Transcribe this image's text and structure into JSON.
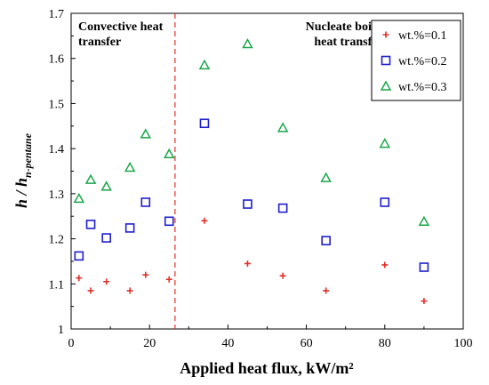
{
  "chart_data": {
    "type": "scatter",
    "xlabel": "Applied heat flux, kW/m²",
    "ylabel_main": "h / h",
    "ylabel_sub": "n-pentane",
    "xlim": [
      0,
      100
    ],
    "ylim": [
      1.0,
      1.7
    ],
    "xticks": [
      "0",
      "20",
      "40",
      "60",
      "80",
      "100"
    ],
    "yticks": [
      "1",
      "1.1",
      "1.2",
      "1.3",
      "1.4",
      "1.5",
      "1.6",
      "1.7"
    ],
    "grid": false,
    "legend_position": "top-right",
    "divider_x": 26.5,
    "annotations": {
      "left": [
        "Convective heat",
        "transfer"
      ],
      "right": [
        "Nucleate boiling",
        "heat transfer"
      ]
    },
    "series": [
      {
        "name": "wt.%=0.1",
        "marker": "plus",
        "color": "#e0302a",
        "x": [
          2,
          5,
          9,
          15,
          19,
          25,
          34,
          45,
          54,
          65,
          80,
          90
        ],
        "y": [
          1.113,
          1.085,
          1.105,
          1.085,
          1.12,
          1.11,
          1.24,
          1.145,
          1.118,
          1.085,
          1.142,
          1.062
        ]
      },
      {
        "name": "wt.%=0.2",
        "marker": "square",
        "color": "#1f1fcc",
        "x": [
          2,
          5,
          9,
          15,
          19,
          25,
          34,
          45,
          54,
          65,
          80,
          90
        ],
        "y": [
          1.162,
          1.232,
          1.202,
          1.224,
          1.281,
          1.239,
          1.456,
          1.277,
          1.268,
          1.196,
          1.281,
          1.137
        ]
      },
      {
        "name": "wt.%=0.3",
        "marker": "triangle",
        "color": "#1aa64a",
        "x": [
          2,
          5,
          9,
          15,
          19,
          25,
          34,
          45,
          54,
          65,
          80,
          90
        ],
        "y": [
          1.289,
          1.331,
          1.316,
          1.358,
          1.432,
          1.388,
          1.585,
          1.632,
          1.446,
          1.335,
          1.411,
          1.238
        ]
      }
    ]
  }
}
